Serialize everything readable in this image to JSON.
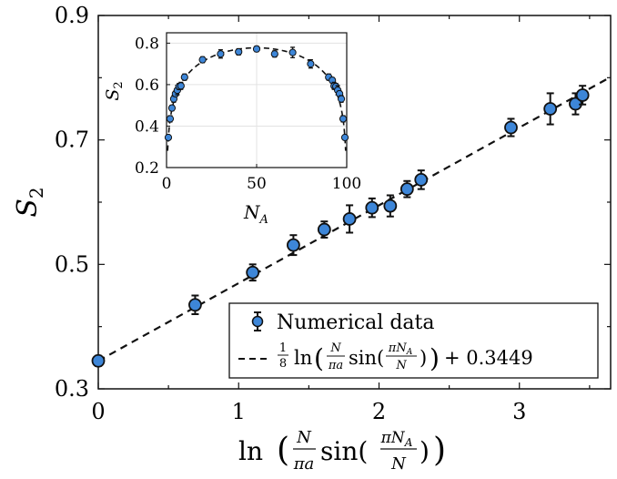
{
  "chart_data": [
    {
      "type": "scatter",
      "title": "",
      "xlabel_main": "ln",
      "xlabel_frac1_num": "N",
      "xlabel_frac1_den": "πa",
      "xlabel_func": "sin(",
      "xlabel_frac2_num": "πN",
      "xlabel_frac2_num_sub": "A",
      "xlabel_frac2_den": "N",
      "xlabel_close": ")",
      "ylabel": "S",
      "ylabel_sub": "2",
      "xlim": [
        0,
        3.65
      ],
      "ylim": [
        0.3,
        0.9
      ],
      "xticks": [
        "0",
        "1",
        "2",
        "3"
      ],
      "yticks": [
        "0.3",
        "0.5",
        "0.7",
        "0.9"
      ],
      "series": [
        {
          "name": "Numerical data",
          "x": [
            0.0,
            0.69,
            1.1,
            1.39,
            1.61,
            1.79,
            1.95,
            2.08,
            2.2,
            2.3,
            2.94,
            3.22,
            3.4,
            3.45
          ],
          "y": [
            0.345,
            0.435,
            0.487,
            0.531,
            0.556,
            0.573,
            0.591,
            0.594,
            0.621,
            0.636,
            0.72,
            0.75,
            0.758,
            0.772
          ],
          "err": [
            0.008,
            0.015,
            0.013,
            0.016,
            0.013,
            0.022,
            0.015,
            0.017,
            0.013,
            0.015,
            0.014,
            0.025,
            0.017,
            0.015
          ]
        }
      ],
      "fit": {
        "name_prefix": "1/8",
        "name_text": "ln",
        "name_suffix": "+ 0.3449",
        "slope": 0.125,
        "intercept": 0.3449
      },
      "legend": "bottom-right"
    },
    {
      "type": "scatter",
      "xlabel": "N",
      "xlabel_sub": "A",
      "ylabel": "S",
      "ylabel_sub": "2",
      "xlim": [
        0,
        100
      ],
      "ylim": [
        0.2,
        0.85
      ],
      "xticks": [
        "0",
        "50",
        "100"
      ],
      "yticks": [
        "0.2",
        "0.4",
        "0.6",
        "0.8"
      ],
      "grid": true,
      "series": [
        {
          "name": "Numerical data",
          "x": [
            1,
            2,
            3,
            4,
            5,
            6,
            7,
            8,
            10,
            20,
            30,
            40,
            50,
            60,
            70,
            80,
            90,
            92,
            93,
            94,
            95,
            96,
            97,
            98,
            99
          ],
          "y": [
            0.345,
            0.435,
            0.487,
            0.531,
            0.556,
            0.573,
            0.591,
            0.594,
            0.636,
            0.72,
            0.748,
            0.758,
            0.772,
            0.748,
            0.755,
            0.7,
            0.636,
            0.621,
            0.594,
            0.591,
            0.573,
            0.556,
            0.531,
            0.435,
            0.345
          ],
          "err": [
            0.01,
            0.015,
            0.013,
            0.016,
            0.013,
            0.022,
            0.015,
            0.017,
            0.015,
            0.014,
            0.02,
            0.015,
            0.013,
            0.015,
            0.025,
            0.02,
            0.015,
            0.013,
            0.017,
            0.015,
            0.022,
            0.013,
            0.016,
            0.015,
            0.01
          ]
        }
      ],
      "fit": {
        "type": "dashed",
        "intercept": 0.3449
      }
    }
  ],
  "colors": {
    "marker_fill": "#3d86d8",
    "marker_edge": "#111111",
    "axis": "#111111",
    "grid": "#e3e3e3",
    "dash": "#111111"
  }
}
